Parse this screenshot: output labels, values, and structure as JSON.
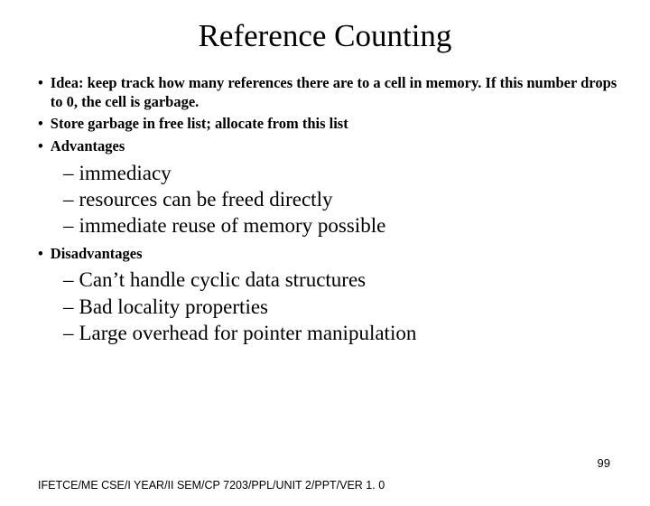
{
  "title": "Reference Counting",
  "bullet1": "Idea: keep track how many references there are to a cell in memory. If this number drops to 0, the cell is garbage.",
  "bullet2": "Store garbage in free list; allocate from this list",
  "bullet3": "Advantages",
  "adv1": "immediacy",
  "adv2": "resources can be freed directly",
  "adv3": "immediate reuse of memory possible",
  "bullet4": "Disadvantages",
  "dis1": "Can’t handle cyclic data structures",
  "dis2": "Bad locality properties",
  "dis3": "Large overhead for pointer manipulation",
  "footer": "IFETCE/ME CSE/I YEAR/II SEM/CP 7203/PPL/UNIT 2/PPT/VER 1. 0",
  "pagenum": "99"
}
